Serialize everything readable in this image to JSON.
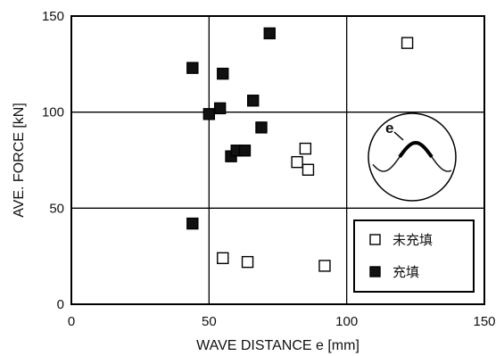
{
  "chart_data": {
    "type": "scatter",
    "xlabel": "WAVE  DISTANCE  e  [mm]",
    "ylabel": "AVE.  FORCE [kN]",
    "xlim": [
      0,
      150
    ],
    "ylim": [
      0,
      150
    ],
    "xticks": [
      0,
      50,
      100,
      150
    ],
    "yticks": [
      0,
      50,
      100,
      150
    ],
    "grid": true,
    "legend_position": "bottom-right",
    "inset_label": "e",
    "series": [
      {
        "name": "未充填",
        "marker": "open-square",
        "points": [
          {
            "x": 55,
            "y": 24
          },
          {
            "x": 64,
            "y": 22
          },
          {
            "x": 82,
            "y": 74
          },
          {
            "x": 85,
            "y": 81
          },
          {
            "x": 86,
            "y": 70
          },
          {
            "x": 92,
            "y": 20
          },
          {
            "x": 122,
            "y": 136
          }
        ]
      },
      {
        "name": "充填",
        "marker": "filled-square",
        "points": [
          {
            "x": 44,
            "y": 42
          },
          {
            "x": 44,
            "y": 123
          },
          {
            "x": 50,
            "y": 99
          },
          {
            "x": 54,
            "y": 102
          },
          {
            "x": 55,
            "y": 120
          },
          {
            "x": 58,
            "y": 77
          },
          {
            "x": 60,
            "y": 80
          },
          {
            "x": 63,
            "y": 80
          },
          {
            "x": 66,
            "y": 106
          },
          {
            "x": 69,
            "y": 92
          },
          {
            "x": 72,
            "y": 141
          }
        ]
      }
    ]
  }
}
